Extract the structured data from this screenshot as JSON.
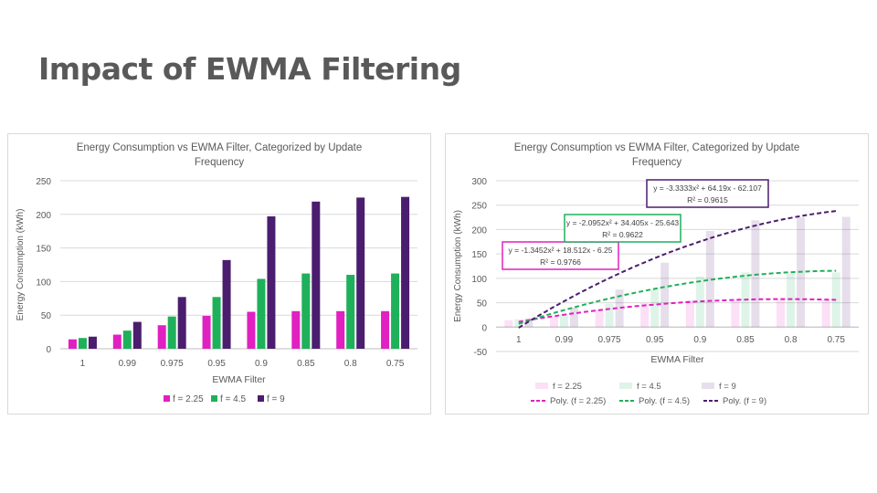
{
  "slide": {
    "title": "Impact of EWMA Filtering"
  },
  "colors": {
    "f225": "#e020c0",
    "f45": "#1fb05a",
    "f9": "#4b1d6e"
  },
  "chart_data": [
    {
      "type": "bar",
      "title": "Energy Consumption vs EWMA Filter, Categorized by Update Frequency",
      "title_lines": [
        "Energy Consumption vs EWMA Filter, Categorized by Update",
        "Frequency"
      ],
      "xlabel": "EWMA Filter",
      "ylabel": "Energy Consumption (kWh)",
      "categories": [
        "1",
        "0.99",
        "0.975",
        "0.95",
        "0.9",
        "0.85",
        "0.8",
        "0.75"
      ],
      "ylim": [
        0,
        250
      ],
      "yticks": [
        "0",
        "50",
        "100",
        "150",
        "200",
        "250"
      ],
      "grid": true,
      "legend_position": "bottom",
      "series": [
        {
          "name": "f = 2.25",
          "values": [
            14,
            21,
            35,
            49,
            55,
            56,
            56,
            56
          ]
        },
        {
          "name": "f = 4.5",
          "values": [
            16,
            27,
            48,
            77,
            104,
            112,
            110,
            112
          ]
        },
        {
          "name": "f = 9",
          "values": [
            18,
            40,
            77,
            132,
            197,
            219,
            225,
            226
          ]
        }
      ]
    },
    {
      "type": "bar",
      "title": "Energy Consumption vs EWMA Filter, Categorized by Update Frequency",
      "title_lines": [
        "Energy Consumption vs EWMA Filter, Categorized by Update",
        "Frequency"
      ],
      "xlabel": "EWMA Filter",
      "ylabel": "Energy Consumption (kWh)",
      "categories": [
        "1",
        "0.99",
        "0.975",
        "0.95",
        "0.9",
        "0.85",
        "0.8",
        "0.75"
      ],
      "ylim": [
        -50,
        300
      ],
      "yticks": [
        "-50",
        "0",
        "50",
        "100",
        "150",
        "200",
        "250",
        "300"
      ],
      "grid": true,
      "legend_position": "bottom",
      "series": [
        {
          "name": "f = 2.25",
          "values": [
            14,
            21,
            35,
            49,
            55,
            56,
            56,
            56
          ]
        },
        {
          "name": "f = 4.5",
          "values": [
            16,
            27,
            48,
            77,
            104,
            112,
            110,
            112
          ]
        },
        {
          "name": "f = 9",
          "values": [
            18,
            40,
            77,
            132,
            197,
            219,
            225,
            226
          ]
        }
      ],
      "trendlines": [
        {
          "name": "Poly. (f = 2.25)",
          "coeffs": [
            -1.3452,
            18.512,
            -6.25
          ],
          "equation": "y = -1.3452x² + 18.512x - 6.25",
          "r2": "R² = 0.9766"
        },
        {
          "name": "Poly. (f = 4.5)",
          "coeffs": [
            -2.0952,
            34.405,
            -25.643
          ],
          "equation": "y = -2.0952x² + 34.405x - 25.643",
          "r2": "R² = 0.9622"
        },
        {
          "name": "Poly. (f = 9)",
          "coeffs": [
            -3.3333,
            64.19,
            -62.107
          ],
          "equation": "y = -3.3333x² + 64.19x - 62.107",
          "r2": "R² = 0.9615"
        }
      ]
    }
  ]
}
